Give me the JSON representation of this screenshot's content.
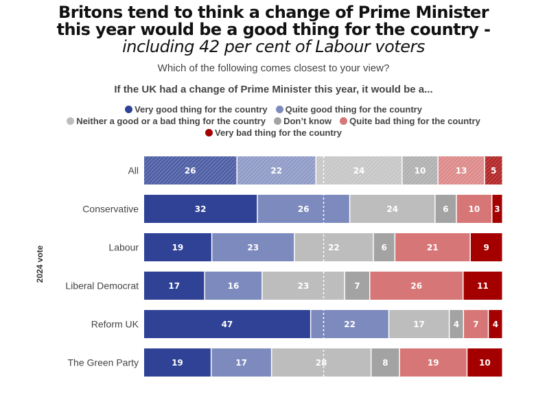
{
  "chart_data": {
    "type": "bar",
    "orientation": "horizontal-stacked-100",
    "title_lines": [
      "Britons tend to think a change of Prime Minister",
      "this year would be a good thing for the country -"
    ],
    "title_italic": "including 42 per cent of Labour voters",
    "subtitle": "Which of the following comes closest to your view?",
    "question": "If the UK had a change of Prime Minister this year, it would be a...",
    "ylabel": "2024 vote",
    "xlim": [
      0,
      100
    ],
    "midline": 50,
    "categories": [
      "All",
      "Conservative",
      "Labour",
      "Liberal Democrat",
      "Reform UK",
      "The Green Party"
    ],
    "highlight_category": "All",
    "series": [
      {
        "name": "Very good thing for the country",
        "color": "#2f4295",
        "values": [
          26,
          32,
          19,
          17,
          47,
          19
        ]
      },
      {
        "name": "Quite good thing for the country",
        "color": "#7d8abd",
        "values": [
          22,
          26,
          23,
          16,
          22,
          17
        ]
      },
      {
        "name": "Neither a good or a bad thing for the country",
        "color": "#bdbdbd",
        "values": [
          24,
          24,
          22,
          23,
          17,
          28
        ]
      },
      {
        "name": "Don’t know",
        "color": "#a3a3a3",
        "values": [
          10,
          6,
          6,
          7,
          4,
          8
        ]
      },
      {
        "name": "Quite bad thing for the country",
        "color": "#d77676",
        "values": [
          13,
          10,
          21,
          26,
          7,
          19
        ]
      },
      {
        "name": "Very bad thing for the country",
        "color": "#a50000",
        "values": [
          5,
          3,
          9,
          11,
          4,
          10
        ]
      }
    ],
    "legend_rows": [
      [
        0,
        1
      ],
      [
        2,
        3,
        4
      ],
      [
        5
      ]
    ],
    "legend_position": "top-center",
    "grid": false
  }
}
